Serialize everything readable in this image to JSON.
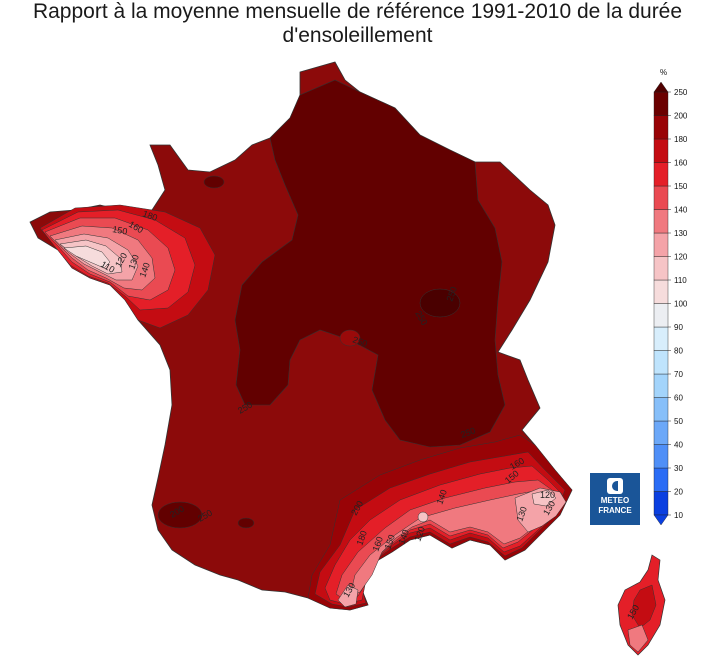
{
  "title": {
    "line1": "Rapport à la moyenne mensuelle de référence 1991-2010 de la durée",
    "line2": "d'ensoleillement"
  },
  "legend": {
    "unit": "%",
    "levels": [
      10,
      20,
      30,
      40,
      50,
      60,
      70,
      80,
      90,
      100,
      110,
      120,
      130,
      140,
      150,
      160,
      180,
      200,
      250
    ],
    "colors": [
      "#0a3fe0",
      "#2a6cf5",
      "#4f8ff7",
      "#6ca8f8",
      "#87bff9",
      "#a3d4fb",
      "#bfe4fd",
      "#d8eefc",
      "#eceef2",
      "#f6dcdc",
      "#f6c4c6",
      "#f4a3a8",
      "#f0797f",
      "#ea4a52",
      "#e41f28",
      "#c40c12",
      "#990306",
      "#6b0000"
    ],
    "top_color": "#500000"
  },
  "map": {
    "title_note": "",
    "regions": [
      {
        "name": "france-main-land",
        "fill": "#8c0a0a"
      },
      {
        "name": "north-east-high",
        "fill": "#620000"
      },
      {
        "name": "brittany-low",
        "fill": "#f0797f"
      },
      {
        "name": "south-east-low",
        "fill": "#f0797f"
      },
      {
        "name": "corsica",
        "fill": "#e41f28"
      }
    ],
    "contour_labels": [
      "180",
      "160",
      "150",
      "140",
      "130",
      "120",
      "110",
      "250",
      "250",
      "250",
      "250",
      "250",
      "160",
      "150",
      "140",
      "130",
      "120",
      "130",
      "120",
      "140",
      "150",
      "160",
      "180",
      "200",
      "200",
      "250",
      "130",
      "150"
    ]
  },
  "logo": {
    "line1": "METEO",
    "line2": "FRANCE"
  }
}
